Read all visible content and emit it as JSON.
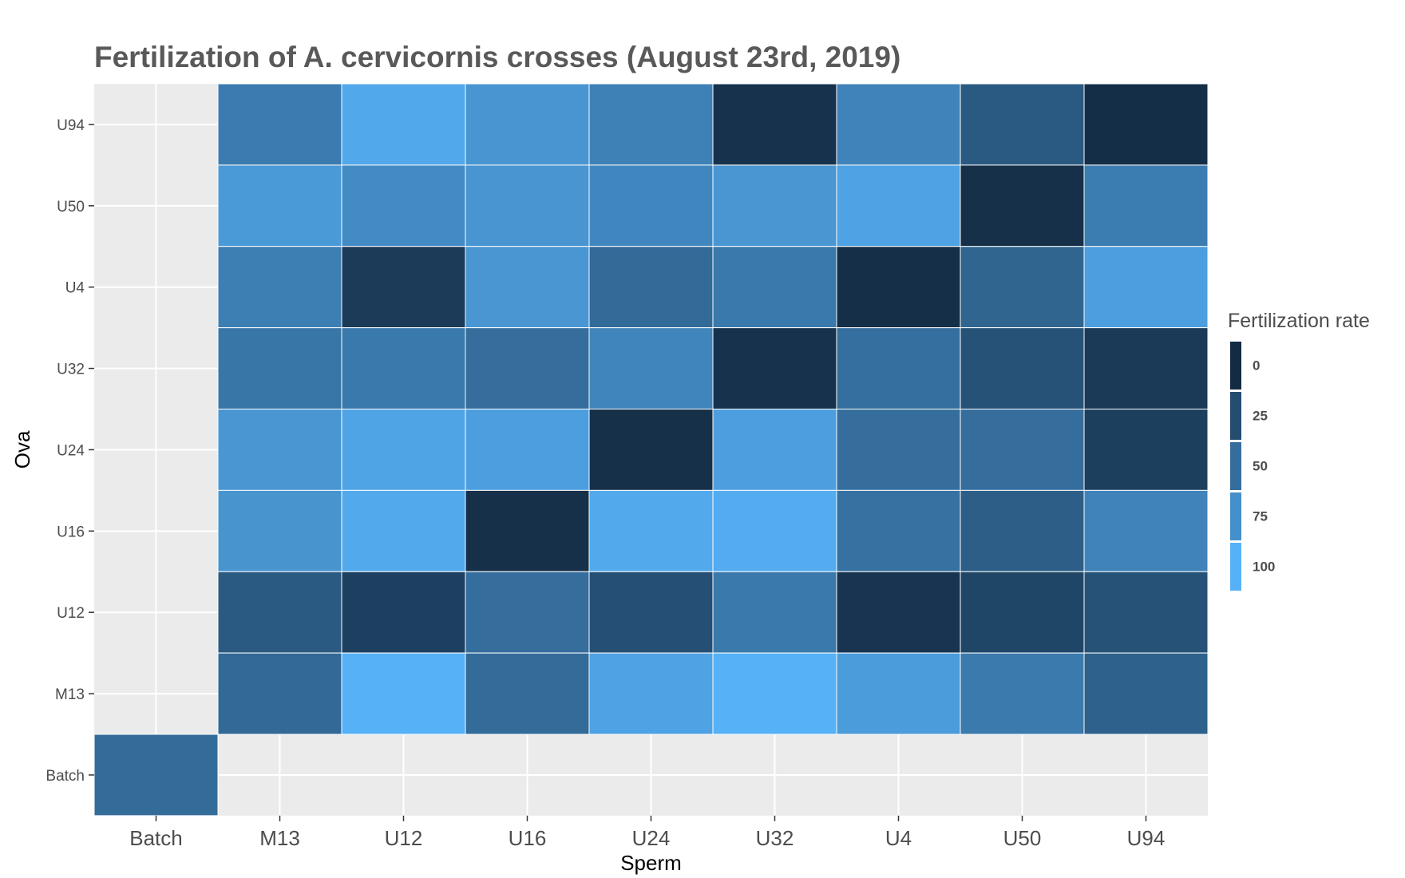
{
  "chart_data": {
    "type": "heatmap",
    "title": "Fertilization of A. cervicornis crosses (August 23rd, 2019)",
    "xlabel": "Sperm",
    "ylabel": "Ova",
    "x_categories": [
      "Batch",
      "M13",
      "U12",
      "U16",
      "U24",
      "U32",
      "U4",
      "U50",
      "U94"
    ],
    "y_categories": [
      "U94",
      "U50",
      "U4",
      "U32",
      "U24",
      "U16",
      "U12",
      "M13",
      "Batch"
    ],
    "values": [
      [
        null,
        60,
        93,
        79,
        64,
        5,
        66,
        35,
        2
      ],
      [
        null,
        83,
        72,
        79,
        69,
        80,
        89,
        4,
        61
      ],
      [
        null,
        62,
        12,
        80,
        47,
        58,
        3,
        43,
        86
      ],
      [
        null,
        56,
        58,
        50,
        67,
        5,
        51,
        29,
        11
      ],
      [
        null,
        80,
        90,
        86,
        4,
        86,
        50,
        50,
        15
      ],
      [
        null,
        78,
        94,
        4,
        94,
        96,
        52,
        38,
        66
      ],
      [
        null,
        35,
        16,
        50,
        27,
        58,
        7,
        20,
        29
      ],
      [
        null,
        46,
        100,
        48,
        89,
        100,
        84,
        59,
        40
      ],
      [
        48,
        null,
        null,
        null,
        null,
        null,
        null,
        null,
        null
      ]
    ],
    "legend": {
      "title": "Fertilization rate",
      "position": "right",
      "breaks": [
        0,
        25,
        50,
        75,
        100
      ],
      "labels": [
        "0",
        "25",
        "50",
        "75",
        "100"
      ]
    },
    "color_scale": {
      "low": "#132B43",
      "high": "#56B1F7"
    },
    "panel_background": "#EBEBEB",
    "grid_color": "#FFFFFF",
    "value_range": [
      0,
      100
    ]
  }
}
